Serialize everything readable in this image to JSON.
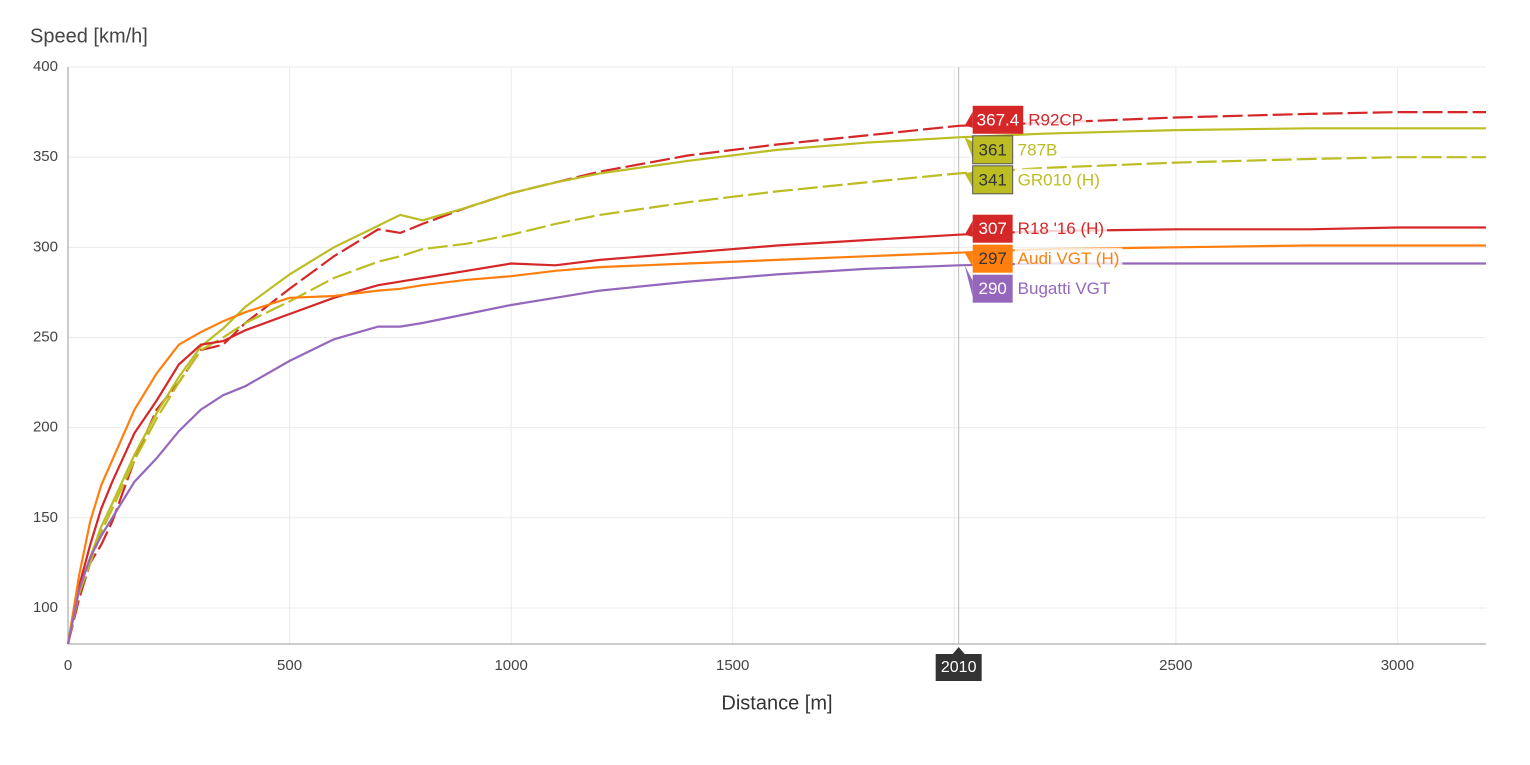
{
  "chart_data": {
    "type": "line",
    "y_label": "Speed [km/h]",
    "x_label": "Distance [m]",
    "xlim": [
      0,
      3200
    ],
    "xticks": [
      0,
      500,
      1000,
      1500,
      2000,
      2500,
      3000
    ],
    "ylim": [
      80,
      400
    ],
    "yticks": [
      100,
      150,
      200,
      250,
      300,
      350,
      400
    ],
    "grid": true,
    "hover_x": 2010,
    "x": [
      0,
      25,
      50,
      75,
      100,
      150,
      200,
      250,
      300,
      350,
      400,
      500,
      600,
      700,
      750,
      800,
      900,
      1000,
      1100,
      1200,
      1400,
      1600,
      1800,
      2010,
      2200,
      2500,
      2800,
      3000,
      3200
    ],
    "series": [
      {
        "name": "R92CP",
        "color": "#d62728",
        "dashed": true,
        "values": [
          80,
          105,
          125,
          135,
          148,
          182,
          210,
          225,
          243,
          246,
          258,
          277,
          295,
          310,
          308,
          313,
          322,
          330,
          336,
          342,
          351,
          357,
          362,
          367.4,
          369,
          372,
          374,
          375,
          375
        ]
      },
      {
        "name": "787B",
        "color": "#bcbd22",
        "dashed": false,
        "values": [
          80,
          110,
          128,
          145,
          158,
          185,
          208,
          228,
          245,
          255,
          267,
          285,
          300,
          312,
          318,
          315,
          322,
          330,
          336,
          341,
          348,
          354,
          358,
          361,
          363,
          365,
          366,
          366,
          366
        ]
      },
      {
        "name": "GR010 (H)",
        "color": "#bcbd22",
        "dashed": true,
        "values": [
          80,
          108,
          125,
          142,
          155,
          182,
          205,
          225,
          243,
          250,
          258,
          270,
          283,
          292,
          295,
          299,
          302,
          307,
          313,
          318,
          325,
          331,
          336,
          341,
          344,
          347,
          349,
          350,
          350
        ]
      },
      {
        "name": "R18 '16 (H)",
        "color": "#d62728",
        "dashed": false,
        "values": [
          80,
          112,
          135,
          155,
          170,
          197,
          215,
          235,
          246,
          248,
          254,
          263,
          272,
          279,
          281,
          283,
          287,
          291,
          290,
          293,
          297,
          301,
          304,
          307,
          309,
          310,
          310,
          311,
          311
        ]
      },
      {
        "name": "Audi VGT (H)",
        "color": "#ff7f0e",
        "dashed": false,
        "values": [
          80,
          118,
          148,
          168,
          182,
          210,
          230,
          246,
          253,
          259,
          264,
          272,
          273,
          276,
          277,
          279,
          282,
          284,
          287,
          289,
          291,
          293,
          295,
          297,
          299,
          300,
          301,
          301,
          301
        ]
      },
      {
        "name": "Bugatti VGT",
        "color": "#9467bd",
        "dashed": false,
        "values": [
          80,
          110,
          128,
          140,
          150,
          170,
          183,
          198,
          210,
          218,
          223,
          237,
          249,
          256,
          256,
          258,
          263,
          268,
          272,
          276,
          281,
          285,
          288,
          290,
          291,
          291,
          291,
          291,
          291
        ]
      }
    ]
  }
}
